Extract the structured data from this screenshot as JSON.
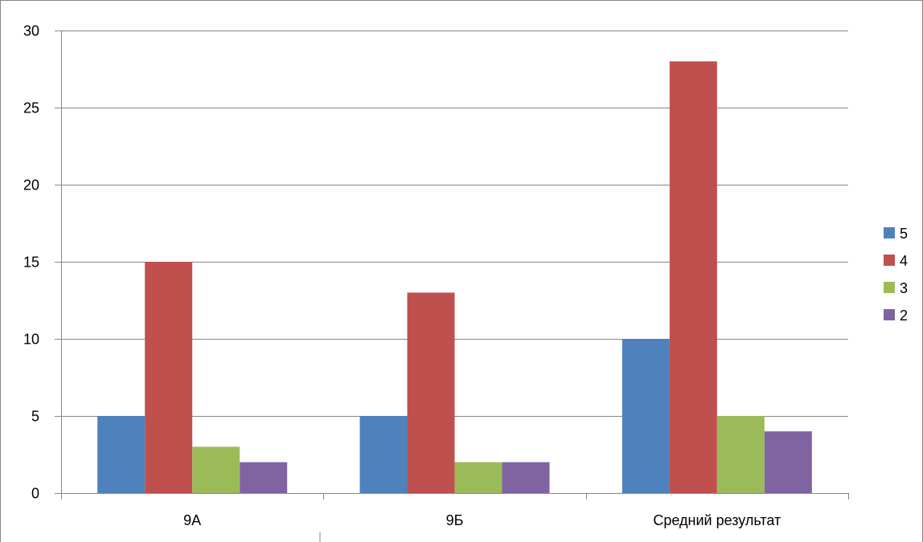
{
  "chart_data": {
    "type": "bar",
    "title": "",
    "xlabel": "",
    "ylabel": "",
    "categories": [
      "9А",
      "9Б",
      "Средний результат"
    ],
    "series": [
      {
        "name": "5",
        "values": [
          5,
          5,
          10
        ],
        "color": "#4F81BD"
      },
      {
        "name": "4",
        "values": [
          15,
          13,
          28
        ],
        "color": "#C0504D"
      },
      {
        "name": "3",
        "values": [
          3,
          2,
          5
        ],
        "color": "#9BBB59"
      },
      {
        "name": "2",
        "values": [
          2,
          2,
          4
        ],
        "color": "#8064A2"
      }
    ],
    "ylim": [
      0,
      30
    ],
    "yticks": [
      0,
      5,
      10,
      15,
      20,
      25,
      30
    ],
    "grid": true,
    "legend_position": "right"
  }
}
